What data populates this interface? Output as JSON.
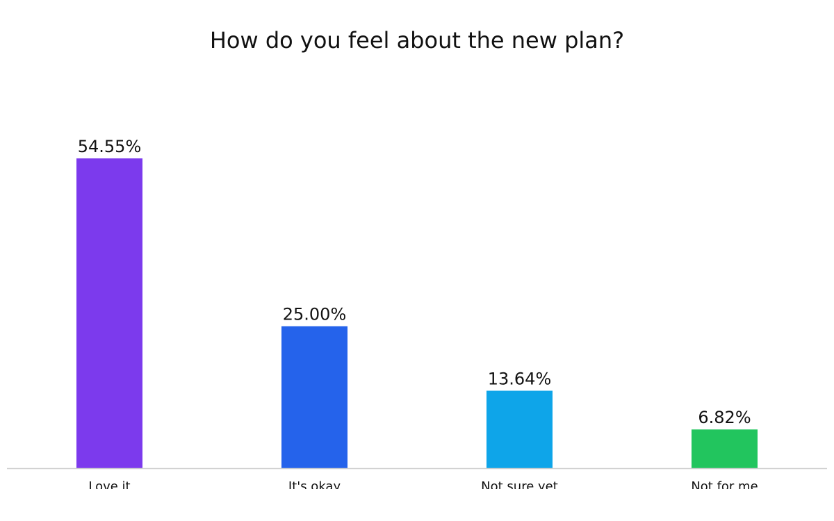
{
  "chart_data": {
    "type": "bar",
    "title": "How do you feel about the new plan?",
    "categories": [
      "Love it",
      "It's okay",
      "Not sure yet",
      "Not for me"
    ],
    "values": [
      54.55,
      25.0,
      13.64,
      6.82
    ],
    "value_labels": [
      "54.55%",
      "25.00%",
      "13.64%",
      "6.82%"
    ],
    "colors": [
      "#7c3aed",
      "#2563eb",
      "#0ea5e9",
      "#22c55e"
    ]
  }
}
